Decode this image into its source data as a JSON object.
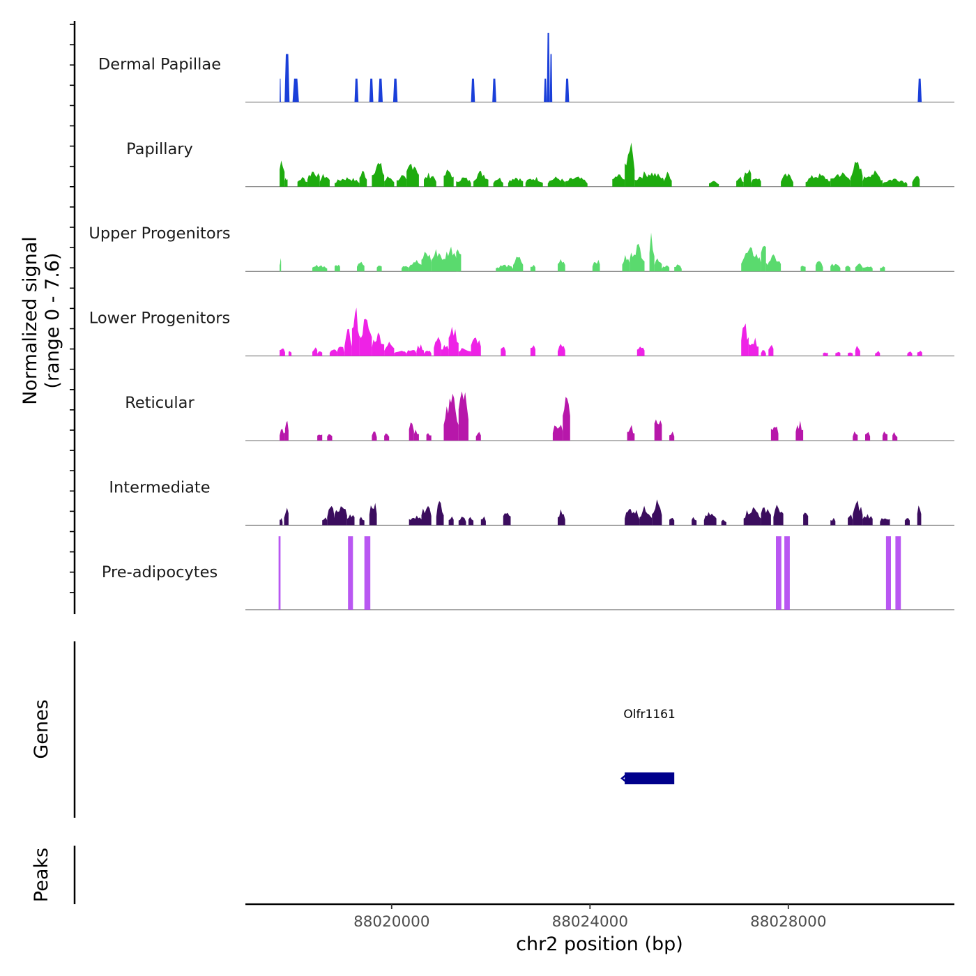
{
  "chart_data": {
    "type": "area",
    "title": "",
    "ylabel": "Normalized signal",
    "ylabel_range": "(range 0 - 7.6)",
    "ylim": [
      0,
      7.6
    ],
    "xlabel": "chr2 position (bp)",
    "xlim": [
      88017050,
      88031350
    ],
    "x_ticks": [
      88020000,
      88024000,
      88028000
    ],
    "x_tick_labels": [
      "88020000",
      "88024000",
      "88028000"
    ],
    "tracks": [
      {
        "name": "Dermal Papillae",
        "color": "#1a3fd9",
        "style": "peaks",
        "peaks": [
          [
            88017740,
            88017765,
            2.2
          ],
          [
            88017840,
            88017940,
            4.5
          ],
          [
            88018000,
            88018130,
            2.2
          ],
          [
            88019250,
            88019330,
            2.2
          ],
          [
            88019550,
            88019630,
            2.2
          ],
          [
            88019730,
            88019820,
            2.2
          ],
          [
            88020030,
            88020120,
            2.2
          ],
          [
            88021600,
            88021680,
            2.2
          ],
          [
            88022030,
            88022110,
            2.2
          ],
          [
            88023070,
            88023130,
            2.2
          ],
          [
            88023130,
            88023190,
            6.5
          ],
          [
            88023190,
            88023240,
            4.5
          ],
          [
            88023500,
            88023580,
            2.2
          ],
          [
            88030610,
            88030690,
            2.2
          ]
        ]
      },
      {
        "name": "Papillary",
        "color": "#1eab0f",
        "style": "noisy",
        "regions": [
          [
            88017740,
            88017840,
            3.2
          ],
          [
            88017840,
            88017900,
            1.1
          ],
          [
            88018100,
            88018300,
            1.0
          ],
          [
            88018300,
            88018550,
            1.8
          ],
          [
            88018550,
            88018750,
            1.3
          ],
          [
            88018850,
            88019350,
            1.0
          ],
          [
            88019350,
            88019500,
            1.7
          ],
          [
            88019600,
            88019850,
            2.6
          ],
          [
            88019850,
            88020050,
            1.1
          ],
          [
            88020100,
            88020300,
            1.2
          ],
          [
            88020300,
            88020550,
            2.8
          ],
          [
            88020650,
            88020900,
            1.4
          ],
          [
            88021050,
            88021250,
            1.8
          ],
          [
            88021300,
            88021600,
            1.0
          ],
          [
            88021650,
            88021950,
            1.6
          ],
          [
            88022050,
            88022250,
            1.0
          ],
          [
            88022350,
            88022650,
            1.1
          ],
          [
            88022700,
            88023050,
            1.0
          ],
          [
            88023150,
            88023500,
            1.0
          ],
          [
            88023500,
            88023950,
            1.0
          ],
          [
            88024450,
            88024700,
            1.3
          ],
          [
            88024700,
            88024900,
            4.4
          ],
          [
            88024900,
            88025500,
            1.6
          ],
          [
            88025500,
            88025650,
            1.5
          ],
          [
            88026400,
            88026600,
            0.7
          ],
          [
            88026950,
            88027100,
            1.0
          ],
          [
            88027100,
            88027250,
            2.2
          ],
          [
            88027250,
            88027450,
            1.1
          ],
          [
            88027850,
            88028100,
            1.3
          ],
          [
            88028350,
            88028850,
            1.3
          ],
          [
            88028850,
            88029250,
            1.5
          ],
          [
            88029250,
            88029500,
            2.5
          ],
          [
            88029500,
            88029900,
            1.6
          ],
          [
            88029900,
            88030400,
            0.9
          ],
          [
            88030500,
            88030650,
            1.2
          ]
        ]
      },
      {
        "name": "Upper Progenitors",
        "color": "#5ada6e",
        "style": "noisy",
        "regions": [
          [
            88017740,
            88017770,
            1.4
          ],
          [
            88018400,
            88018700,
            0.7
          ],
          [
            88018850,
            88018960,
            0.8
          ],
          [
            88019300,
            88019450,
            1.3
          ],
          [
            88019700,
            88019800,
            0.7
          ],
          [
            88020200,
            88020350,
            0.8
          ],
          [
            88020350,
            88020600,
            1.2
          ],
          [
            88020600,
            88020800,
            2.2
          ],
          [
            88020800,
            88021050,
            2.3
          ],
          [
            88021050,
            88021350,
            2.6
          ],
          [
            88021300,
            88021400,
            3.1
          ],
          [
            88022100,
            88022450,
            0.7
          ],
          [
            88022450,
            88022650,
            1.5
          ],
          [
            88022800,
            88022900,
            0.7
          ],
          [
            88023350,
            88023500,
            1.4
          ],
          [
            88024050,
            88024200,
            1.3
          ],
          [
            88024650,
            88024800,
            1.6
          ],
          [
            88024800,
            88025100,
            2.8
          ],
          [
            88025200,
            88025300,
            3.8
          ],
          [
            88025300,
            88025450,
            1.5
          ],
          [
            88025450,
            88025600,
            0.7
          ],
          [
            88025700,
            88025850,
            0.7
          ],
          [
            88027050,
            88027450,
            2.3
          ],
          [
            88027450,
            88027550,
            3.6
          ],
          [
            88027550,
            88027850,
            1.6
          ],
          [
            88028250,
            88028350,
            0.7
          ],
          [
            88028550,
            88028700,
            1.1
          ],
          [
            88028850,
            88029050,
            0.9
          ],
          [
            88029150,
            88029250,
            0.8
          ],
          [
            88029350,
            88029500,
            1.0
          ],
          [
            88029500,
            88029700,
            0.7
          ],
          [
            88029850,
            88029950,
            0.6
          ]
        ]
      },
      {
        "name": "Lower Progenitors",
        "color": "#ee22e6",
        "style": "noisy",
        "regions": [
          [
            88017740,
            88017850,
            0.9
          ],
          [
            88017920,
            88017980,
            0.6
          ],
          [
            88018400,
            88018500,
            1.0
          ],
          [
            88018500,
            88018600,
            0.5
          ],
          [
            88018750,
            88018900,
            0.7
          ],
          [
            88018900,
            88019050,
            1.0
          ],
          [
            88019050,
            88019200,
            2.6
          ],
          [
            88019200,
            88019350,
            4.8
          ],
          [
            88019350,
            88019600,
            3.8
          ],
          [
            88019600,
            88019850,
            2.4
          ],
          [
            88019850,
            88020050,
            1.4
          ],
          [
            88020050,
            88020300,
            0.7
          ],
          [
            88020300,
            88020500,
            0.7
          ],
          [
            88020500,
            88020650,
            1.2
          ],
          [
            88020650,
            88020800,
            0.6
          ],
          [
            88020850,
            88021000,
            2.0
          ],
          [
            88021000,
            88021150,
            1.2
          ],
          [
            88021150,
            88021350,
            3.0
          ],
          [
            88021350,
            88021600,
            0.9
          ],
          [
            88021600,
            88021800,
            2.0
          ],
          [
            88022200,
            88022300,
            1.1
          ],
          [
            88022800,
            88022900,
            1.2
          ],
          [
            88023350,
            88023500,
            1.2
          ],
          [
            88024950,
            88025100,
            1.2
          ],
          [
            88027050,
            88027200,
            3.2
          ],
          [
            88027200,
            88027400,
            2.0
          ],
          [
            88027450,
            88027550,
            0.6
          ],
          [
            88027600,
            88027700,
            1.3
          ],
          [
            88028700,
            88028800,
            0.5
          ],
          [
            88028950,
            88029050,
            0.5
          ],
          [
            88029200,
            88029300,
            0.5
          ],
          [
            88029350,
            88029450,
            1.2
          ],
          [
            88029750,
            88029850,
            0.5
          ],
          [
            88030400,
            88030500,
            0.5
          ],
          [
            88030600,
            88030700,
            0.5
          ]
        ]
      },
      {
        "name": "Reticular",
        "color": "#b717aa",
        "style": "noisy",
        "regions": [
          [
            88017740,
            88017850,
            1.3
          ],
          [
            88017850,
            88017920,
            2.0
          ],
          [
            88018500,
            88018600,
            0.9
          ],
          [
            88018700,
            88018800,
            0.9
          ],
          [
            88019600,
            88019700,
            0.9
          ],
          [
            88019850,
            88019950,
            0.9
          ],
          [
            88020350,
            88020450,
            2.1
          ],
          [
            88020450,
            88020550,
            1.1
          ],
          [
            88020700,
            88020800,
            0.9
          ],
          [
            88021050,
            88021350,
            4.6
          ],
          [
            88021350,
            88021550,
            5.3
          ],
          [
            88021700,
            88021800,
            0.9
          ],
          [
            88023250,
            88023450,
            2.0
          ],
          [
            88023450,
            88023600,
            4.3
          ],
          [
            88024750,
            88024900,
            1.5
          ],
          [
            88025300,
            88025450,
            2.8
          ],
          [
            88025600,
            88025700,
            0.9
          ],
          [
            88027650,
            88027800,
            2.0
          ],
          [
            88028150,
            88028300,
            2.0
          ],
          [
            88029300,
            88029400,
            0.9
          ],
          [
            88029550,
            88029650,
            0.9
          ],
          [
            88029900,
            88030000,
            0.9
          ],
          [
            88030100,
            88030200,
            0.9
          ]
        ]
      },
      {
        "name": "Intermediate",
        "color": "#3b0d5e",
        "style": "noisy",
        "regions": [
          [
            88017740,
            88017800,
            0.8
          ],
          [
            88017830,
            88017920,
            1.9
          ],
          [
            88018600,
            88018700,
            0.8
          ],
          [
            88018700,
            88018850,
            1.9
          ],
          [
            88018850,
            88019100,
            2.2
          ],
          [
            88019100,
            88019250,
            1.4
          ],
          [
            88019350,
            88019450,
            0.9
          ],
          [
            88019550,
            88019700,
            2.7
          ],
          [
            88020350,
            88020600,
            1.1
          ],
          [
            88020600,
            88020800,
            2.0
          ],
          [
            88020900,
            88021050,
            2.4
          ],
          [
            88021150,
            88021250,
            0.9
          ],
          [
            88021350,
            88021500,
            0.9
          ],
          [
            88021550,
            88021650,
            0.9
          ],
          [
            88021800,
            88021900,
            0.9
          ],
          [
            88022250,
            88022400,
            1.5
          ],
          [
            88023350,
            88023500,
            1.6
          ],
          [
            88024700,
            88025000,
            1.9
          ],
          [
            88025000,
            88025250,
            1.9
          ],
          [
            88025250,
            88025450,
            2.6
          ],
          [
            88025600,
            88025700,
            0.8
          ],
          [
            88026050,
            88026150,
            0.8
          ],
          [
            88026300,
            88026550,
            1.3
          ],
          [
            88026650,
            88026750,
            0.7
          ],
          [
            88027100,
            88027450,
            1.9
          ],
          [
            88027450,
            88027650,
            2.1
          ],
          [
            88027700,
            88027900,
            2.1
          ],
          [
            88028300,
            88028400,
            1.5
          ],
          [
            88028850,
            88028950,
            0.8
          ],
          [
            88029200,
            88029300,
            1.1
          ],
          [
            88029300,
            88029500,
            2.4
          ],
          [
            88029500,
            88029700,
            1.2
          ],
          [
            88029850,
            88030050,
            1.0
          ],
          [
            88030350,
            88030450,
            0.8
          ],
          [
            88030600,
            88030680,
            2.0
          ]
        ]
      },
      {
        "name": "Pre-adipocytes",
        "color": "#b957f2",
        "style": "bars",
        "peaks": [
          [
            88017720,
            88017760,
            6.9
          ],
          [
            88019120,
            88019220,
            6.9
          ],
          [
            88019450,
            88019570,
            6.9
          ],
          [
            88027750,
            88027860,
            6.9
          ],
          [
            88027920,
            88028030,
            6.9
          ],
          [
            88029970,
            88030070,
            6.9
          ],
          [
            88030160,
            88030270,
            6.9
          ]
        ]
      }
    ],
    "genes": [
      {
        "name": "Olfr1161",
        "start": 88024700,
        "end": 88025700,
        "strand": "-",
        "color": "#00008b"
      }
    ],
    "panels": {
      "genes_label": "Genes",
      "peaks_label": "Peaks"
    }
  }
}
